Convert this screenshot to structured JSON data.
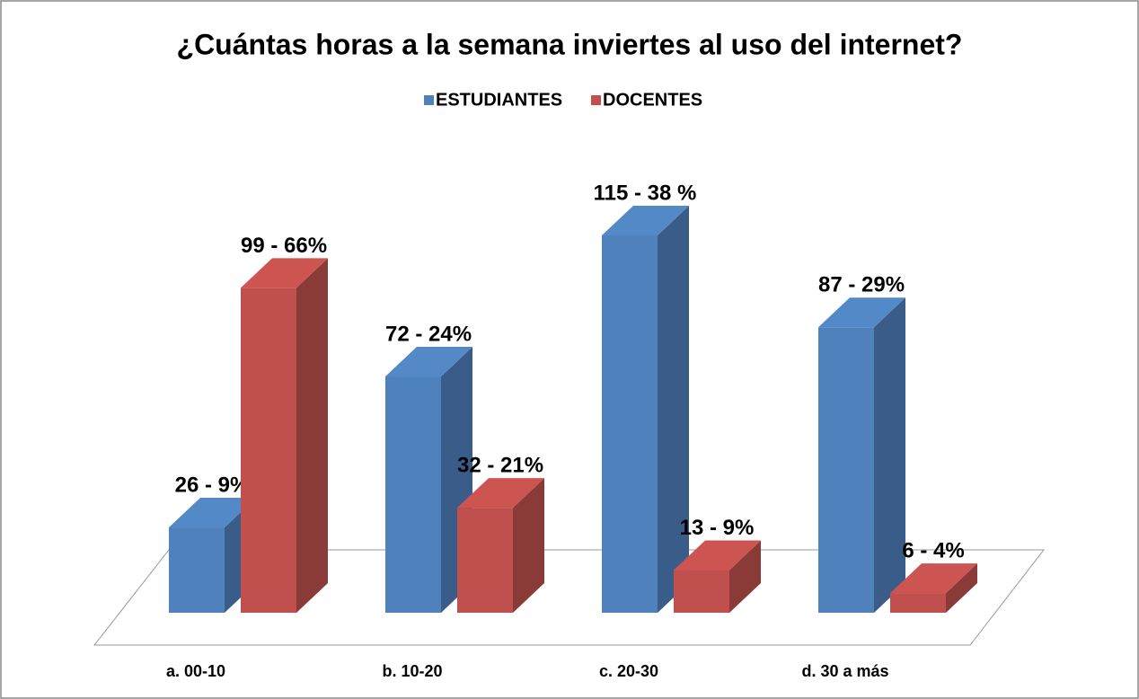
{
  "chart_data": {
    "type": "bar",
    "title": "¿Cuántas horas a la semana inviertes al uso del internet?",
    "categories": [
      "a. 00-10",
      "b. 10-20",
      "c. 20-30",
      "d. 30 a más"
    ],
    "series": [
      {
        "name": "ESTUDIANTES",
        "color": "#4f81bd",
        "values": [
          26,
          72,
          115,
          87
        ],
        "value_labels": [
          "26 - 9%",
          "72 - 24%",
          "115 - 38 %",
          "87 - 29%"
        ]
      },
      {
        "name": "DOCENTES",
        "color": "#c0504d",
        "values": [
          99,
          32,
          13,
          6
        ],
        "value_labels": [
          "99 - 66%",
          "32 - 21%",
          "13 - 9%",
          "6 - 4%"
        ]
      }
    ],
    "legend": "top"
  }
}
